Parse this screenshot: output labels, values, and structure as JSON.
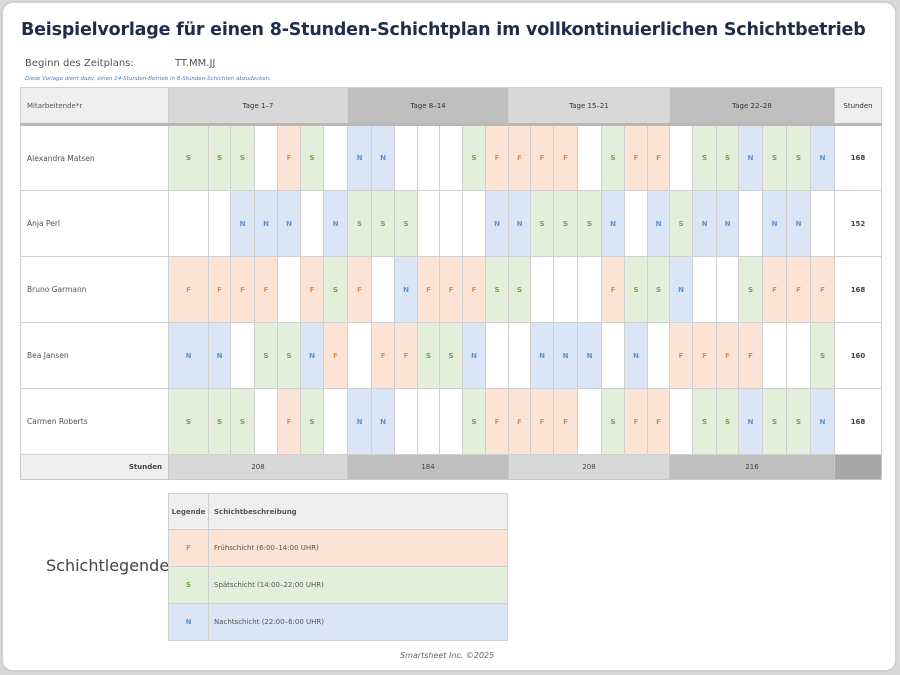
{
  "title": "Beispielvorlage für einen 8-Stunden-Schichtplan im vollkontinuierlichen Schichtbetrieb",
  "start": {
    "label": "Beginn des Zeitplans:",
    "value": "TT.MM.JJ"
  },
  "note": "Diese Vorlage dient dazu, einen 24-Stunden-Betrieb in 8-Stunden-Schichten abzudecken.",
  "table": {
    "header": {
      "employee": "Mitarbeitende*r",
      "weeks": [
        "Tage 1–7",
        "Tage 8–14",
        "Tage 15–21",
        "Tage 22–28"
      ],
      "hours": "Stunden"
    },
    "rows": [
      {
        "name": "Alexandra Matsen",
        "shifts": [
          "S",
          "S",
          "S",
          "",
          "F",
          "S",
          "",
          "N",
          "N",
          "",
          "",
          "",
          "S",
          "F",
          "F",
          "F",
          "F",
          "",
          "S",
          "F",
          "F",
          "",
          "S",
          "S",
          "N",
          "S",
          "S",
          "N"
        ],
        "hours": "168"
      },
      {
        "name": "Anja Perl",
        "shifts": [
          "",
          "",
          "N",
          "N",
          "N",
          "",
          "N",
          "S",
          "S",
          "S",
          "",
          "",
          "",
          "N",
          "N",
          "S",
          "S",
          "S",
          "N",
          "",
          "N",
          "S",
          "N",
          "N",
          "",
          "N",
          "N",
          ""
        ],
        "hours": "152"
      },
      {
        "name": "Bruno Garmann",
        "shifts": [
          "F",
          "F",
          "F",
          "F",
          "",
          "F",
          "S",
          "F",
          "",
          "N",
          "F",
          "F",
          "F",
          "S",
          "S",
          "",
          "",
          "",
          "F",
          "S",
          "S",
          "N",
          "",
          "",
          "S",
          "F",
          "F",
          "F"
        ],
        "hours": "168"
      },
      {
        "name": "Bea Jansen",
        "shifts": [
          "N",
          "N",
          "",
          "S",
          "S",
          "N",
          "F",
          "",
          "F",
          "F",
          "S",
          "S",
          "N",
          "",
          "",
          "N",
          "N",
          "N",
          "",
          "N",
          "",
          "F",
          "F",
          "F",
          "F",
          "",
          "",
          "S"
        ],
        "hours": "160"
      },
      {
        "name": "Carmen Roberts",
        "shifts": [
          "S",
          "S",
          "S",
          "",
          "F",
          "S",
          "",
          "N",
          "N",
          "",
          "",
          "",
          "S",
          "F",
          "F",
          "F",
          "F",
          "",
          "S",
          "F",
          "F",
          "",
          "S",
          "S",
          "N",
          "S",
          "S",
          "N"
        ],
        "hours": "168"
      }
    ],
    "footer": {
      "label": "Stunden",
      "week_totals": [
        "208",
        "184",
        "208",
        "216"
      ]
    }
  },
  "legend": {
    "title": "Schichtlegende",
    "header": {
      "code": "Legende",
      "description": "Schichtbeschreibung"
    },
    "items": [
      {
        "code": "F",
        "description": "Frühschicht (6:00–14:00 UHR)",
        "color": "#fbe3d6"
      },
      {
        "code": "S",
        "description": "Spätschicht (14:00–22:00 UHR)",
        "color": "#e2efda"
      },
      {
        "code": "N",
        "description": "Nachtschicht (22:00–6:00 UHR)",
        "color": "#dae5f5"
      }
    ]
  },
  "copyright": "Smartsheet Inc. ©2025"
}
